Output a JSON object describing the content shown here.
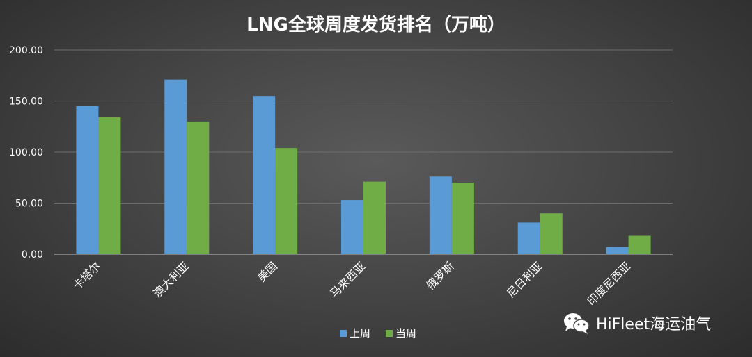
{
  "chart_data": {
    "type": "bar",
    "title": "LNG全球周度发货排名（万吨）",
    "categories": [
      "卡塔尔",
      "澳大利亚",
      "美国",
      "马来西亚",
      "俄罗斯",
      "尼日利亚",
      "印度尼西亚"
    ],
    "series": [
      {
        "name": "上周",
        "color": "#5b9bd5",
        "values": [
          145,
          171,
          155,
          53,
          76,
          31,
          7
        ]
      },
      {
        "name": "当周",
        "color": "#70ad47",
        "values": [
          134,
          130,
          104,
          71,
          70,
          40,
          18
        ]
      }
    ],
    "yticks": [
      "0.00",
      "50.00",
      "100.00",
      "150.00",
      "200.00"
    ],
    "ylim": [
      0,
      200
    ],
    "grid": true,
    "legend": "bottom-center",
    "xlabel": "",
    "ylabel": ""
  },
  "watermark": {
    "text": "HiFleet海运油气",
    "icon": "wechat-icon"
  }
}
